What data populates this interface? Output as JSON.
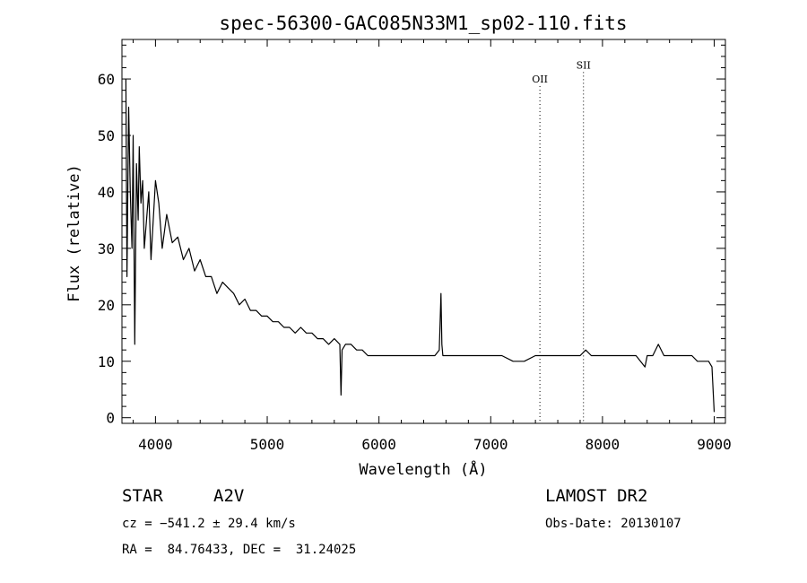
{
  "chart_data": {
    "type": "line",
    "title": "spec-56300-GAC085N33M1_sp02-110.fits",
    "xlabel": "Wavelength (Å)",
    "ylabel": "Flux (relative)",
    "xlim": [
      3700,
      9100
    ],
    "ylim": [
      -1,
      67
    ],
    "xticks": [
      4000,
      5000,
      6000,
      7000,
      8000,
      9000
    ],
    "yticks": [
      0,
      10,
      20,
      30,
      40,
      50,
      60
    ],
    "grid": false,
    "legend": "none",
    "line_color": "#000000",
    "lines": [
      {
        "label": "OII",
        "x": 7440,
        "label_y": 60.0
      },
      {
        "label": "SII",
        "x": 7830,
        "label_y": 62.5
      }
    ],
    "series": [
      {
        "x": [
          3735,
          3745,
          3760,
          3775,
          3790,
          3800,
          3815,
          3830,
          3845,
          3855,
          3870,
          3885,
          3900,
          3920,
          3940,
          3960,
          3980,
          4000,
          4030,
          4060,
          4100,
          4150,
          4200,
          4250,
          4300,
          4350,
          4400,
          4450,
          4500,
          4550,
          4600,
          4650,
          4700,
          4750,
          4800,
          4850,
          4900,
          4950,
          5000,
          5050,
          5100,
          5150,
          5200,
          5250,
          5300,
          5350,
          5400,
          5450,
          5500,
          5550,
          5600,
          5650,
          5660,
          5670,
          5700,
          5750,
          5800,
          5850,
          5900,
          5950,
          6000,
          6050,
          6100,
          6150,
          6200,
          6250,
          6300,
          6350,
          6400,
          6450,
          6500,
          6540,
          6555,
          6563,
          6572,
          6600,
          6650,
          6700,
          6800,
          6900,
          7000,
          7100,
          7200,
          7300,
          7400,
          7500,
          7600,
          7700,
          7800,
          7850,
          7900,
          8000,
          8100,
          8200,
          8300,
          8380,
          8400,
          8450,
          8500,
          8550,
          8600,
          8700,
          8800,
          8850,
          8900,
          8950,
          8980,
          9000
        ],
        "values": [
          60,
          25,
          55,
          40,
          30,
          50,
          13,
          45,
          35,
          48,
          38,
          42,
          30,
          35,
          40,
          28,
          35,
          42,
          38,
          30,
          36,
          31,
          32,
          28,
          30,
          26,
          28,
          25,
          25,
          22,
          24,
          23,
          22,
          20,
          21,
          19,
          19,
          18,
          18,
          17,
          17,
          16,
          16,
          15,
          16,
          15,
          15,
          14,
          14,
          13,
          14,
          13,
          4,
          12,
          13,
          13,
          12,
          12,
          11,
          11,
          11,
          11,
          11,
          11,
          11,
          11,
          11,
          11,
          11,
          11,
          11,
          12,
          22,
          13,
          11,
          11,
          11,
          11,
          11,
          11,
          11,
          11,
          10,
          10,
          11,
          11,
          11,
          11,
          11,
          12,
          11,
          11,
          11,
          11,
          11,
          9,
          11,
          11,
          13,
          11,
          11,
          11,
          11,
          10,
          10,
          10,
          9,
          1
        ]
      }
    ]
  },
  "info": {
    "class": "STAR",
    "subclass": "A2V",
    "cz": "cz = −541.2 ± 29.4 km/s",
    "radec": "RA =  84.76433, DEC =  31.24025",
    "survey": "LAMOST DR2",
    "obsdate": "Obs-Date: 20130107"
  }
}
